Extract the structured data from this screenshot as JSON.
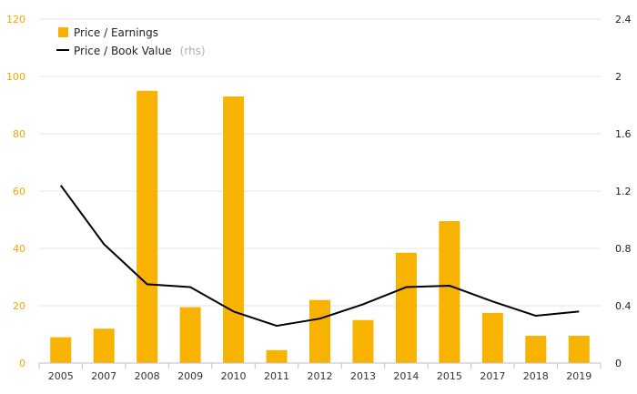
{
  "chart_data": {
    "type": "bar",
    "categories": [
      "2005",
      "2007",
      "2008",
      "2009",
      "2010",
      "2011",
      "2012",
      "2013",
      "2014",
      "2015",
      "2017",
      "2018",
      "2019"
    ],
    "series": [
      {
        "name": "Price / Earnings",
        "type": "bar",
        "axis": "left",
        "color": "#f8b200",
        "values": [
          9,
          12,
          95,
          19.5,
          93,
          4.5,
          22,
          15,
          38.5,
          49.5,
          17.5,
          9.5,
          9.5
        ]
      },
      {
        "name": "Price / Book Value",
        "type": "line",
        "axis": "right",
        "color": "#000000",
        "values": [
          1.24,
          0.83,
          0.55,
          0.53,
          0.36,
          0.26,
          0.31,
          0.41,
          0.53,
          0.54,
          0.43,
          0.33,
          0.36
        ]
      }
    ],
    "legend": {
      "items": [
        {
          "label": "Price / Earnings",
          "suffix": ""
        },
        {
          "label": "Price / Book Value",
          "suffix": "(rhs)"
        }
      ],
      "position": "top-left"
    },
    "y_left": {
      "min": 0,
      "max": 120,
      "ticks": [
        "0",
        "20",
        "40",
        "60",
        "80",
        "100",
        "120"
      ],
      "color": "#f4a700"
    },
    "y_right": {
      "min": 0,
      "max": 2.4,
      "ticks": [
        "0",
        "0.4",
        "0.8",
        "1.2",
        "1.6",
        "2",
        "2.4"
      ]
    },
    "grid": true
  }
}
